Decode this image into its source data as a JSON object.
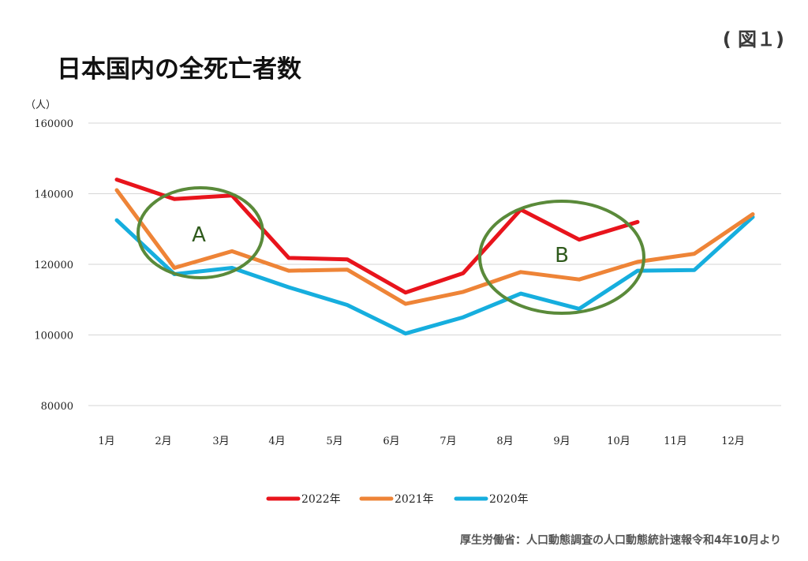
{
  "figure_label": "( 図１)",
  "title": "日本国内の全死亡者数",
  "source": "厚生労働省：人口動態調査の人口動態統計速報令和4年10月より",
  "chart_data": {
    "type": "line",
    "title": "日本国内の全死亡者数",
    "ylabel": "（人）",
    "xlabel": "",
    "ylim": [
      80000,
      160000
    ],
    "yticks": [
      80000,
      100000,
      120000,
      140000,
      160000
    ],
    "ytick_labels": [
      "80000",
      "100000",
      "120000",
      "140000",
      "160000"
    ],
    "grid": true,
    "legend_position": "bottom",
    "categories": [
      "1月",
      "2月",
      "3月",
      "4月",
      "5月",
      "6月",
      "7月",
      "8月",
      "9月",
      "10月",
      "11月",
      "12月"
    ],
    "series": [
      {
        "name": "2022年",
        "color": "#e8141c",
        "values": [
          144000,
          138500,
          139500,
          121800,
          121400,
          112000,
          117500,
          135500,
          127000,
          132000,
          null,
          null
        ]
      },
      {
        "name": "2021年",
        "color": "#ee8437",
        "values": [
          141000,
          119000,
          123700,
          118200,
          118500,
          108800,
          112200,
          117800,
          115700,
          120700,
          123000,
          134200
        ]
      },
      {
        "name": "2020年",
        "color": "#16aede",
        "values": [
          132500,
          117200,
          119000,
          113500,
          108500,
          100400,
          105000,
          111700,
          107400,
          118200,
          118400,
          133400
        ]
      }
    ],
    "annotations": [
      {
        "label": "A",
        "color": "#5a8a3a"
      },
      {
        "label": "B",
        "color": "#5a8a3a"
      }
    ]
  }
}
